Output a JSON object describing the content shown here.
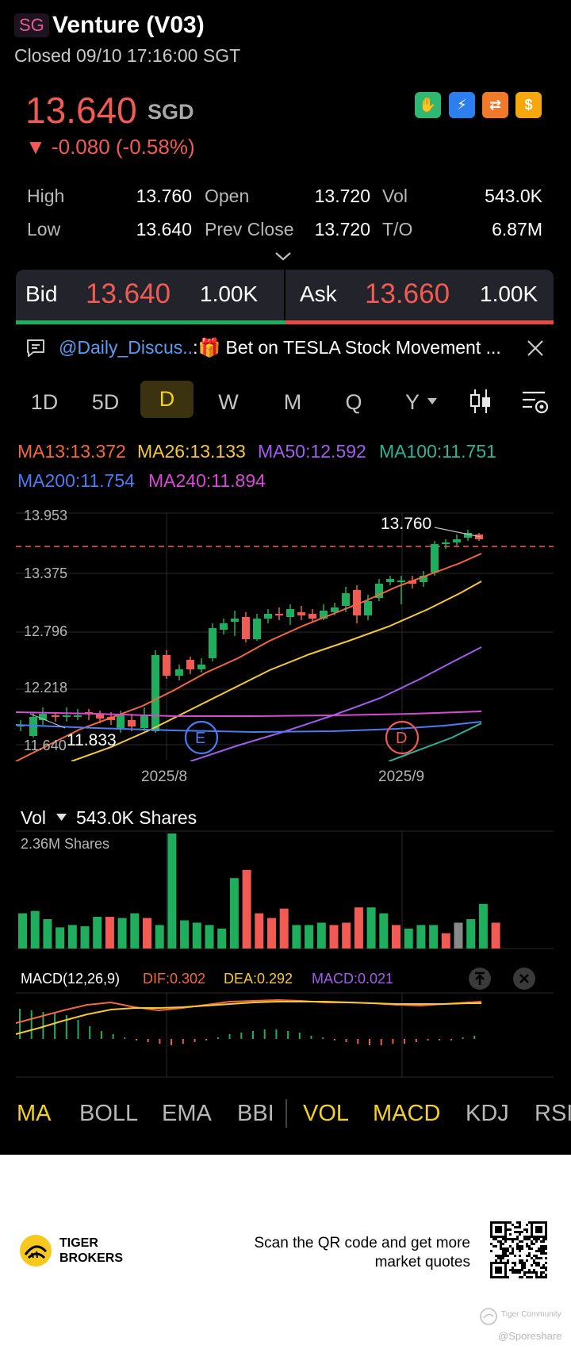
{
  "header": {
    "market": "SG",
    "title": "Venture (V03)",
    "status": "Closed 09/10 17:16:00 SGT"
  },
  "quote": {
    "price": "13.640",
    "currency": "SGD",
    "change": "▼ -0.080 (-0.58%)",
    "badges": [
      "cash-hand-icon",
      "lightning-1-icon",
      "swap-icon",
      "dollar-icon"
    ]
  },
  "stats": {
    "high_label": "High",
    "high": "13.760",
    "open_label": "Open",
    "open": "13.720",
    "vol_label": "Vol",
    "vol": "543.0K",
    "low_label": "Low",
    "low": "13.640",
    "prev_close_label": "Prev Close",
    "prev_close": "13.720",
    "to_label": "T/O",
    "to": "6.87M"
  },
  "bidask": {
    "bid_label": "Bid",
    "bid_price": "13.640",
    "bid_vol": "1.00K",
    "ask_label": "Ask",
    "ask_price": "13.660",
    "ask_vol": "1.00K"
  },
  "news": {
    "handle": "@Daily_Discus..",
    "text": ":🎁 Bet on TESLA Stock Movement ..."
  },
  "timeframes": [
    "1D",
    "5D",
    "D",
    "W",
    "M",
    "Q",
    "Y"
  ],
  "active_timeframe": "D",
  "ma_legend": {
    "ma13": "MA13:13.372",
    "ma26": "MA26:13.133",
    "ma50": "MA50:12.592",
    "ma100": "MA100:11.751",
    "ma200": "MA200:11.754",
    "ma240": "MA240:11.894"
  },
  "price_chart": {
    "y_ticks": [
      "13.953",
      "13.375",
      "12.796",
      "12.218",
      "11.640"
    ],
    "x_ticks": [
      "2025/8",
      "2025/9"
    ],
    "high_marker": "13.760",
    "low_marker": "11.833",
    "markers": [
      "E",
      "D"
    ]
  },
  "volume": {
    "label": "Vol",
    "value": "543.0K Shares",
    "max_label": "2.36M Shares"
  },
  "macd": {
    "title": "MACD(12,26,9)",
    "dif": "DIF:0.302",
    "dea": "DEA:0.292",
    "macd": "MACD:0.021"
  },
  "indicators": {
    "main": [
      "MA",
      "BOLL",
      "EMA",
      "BBI"
    ],
    "sub": [
      "VOL",
      "MACD",
      "KDJ",
      "RSI"
    ],
    "active": [
      "MA",
      "VOL",
      "MACD"
    ]
  },
  "footer": {
    "brand_line1": "TIGER",
    "brand_line2": "BROKERS",
    "cta_line1": "Scan the QR code and get more",
    "cta_line2": "market quotes",
    "watermark_brand": "Tiger Community",
    "watermark_user": "@Sporeshare"
  },
  "colors": {
    "up": "#1fae5e",
    "down": "#f25b54",
    "accent": "#f6d11c",
    "ma13": "#f5683c",
    "ma26": "#f6c834",
    "ma50": "#a35cf0",
    "ma100": "#2db59a",
    "ma200": "#4a7cf4",
    "ma240": "#d64ad6"
  }
}
